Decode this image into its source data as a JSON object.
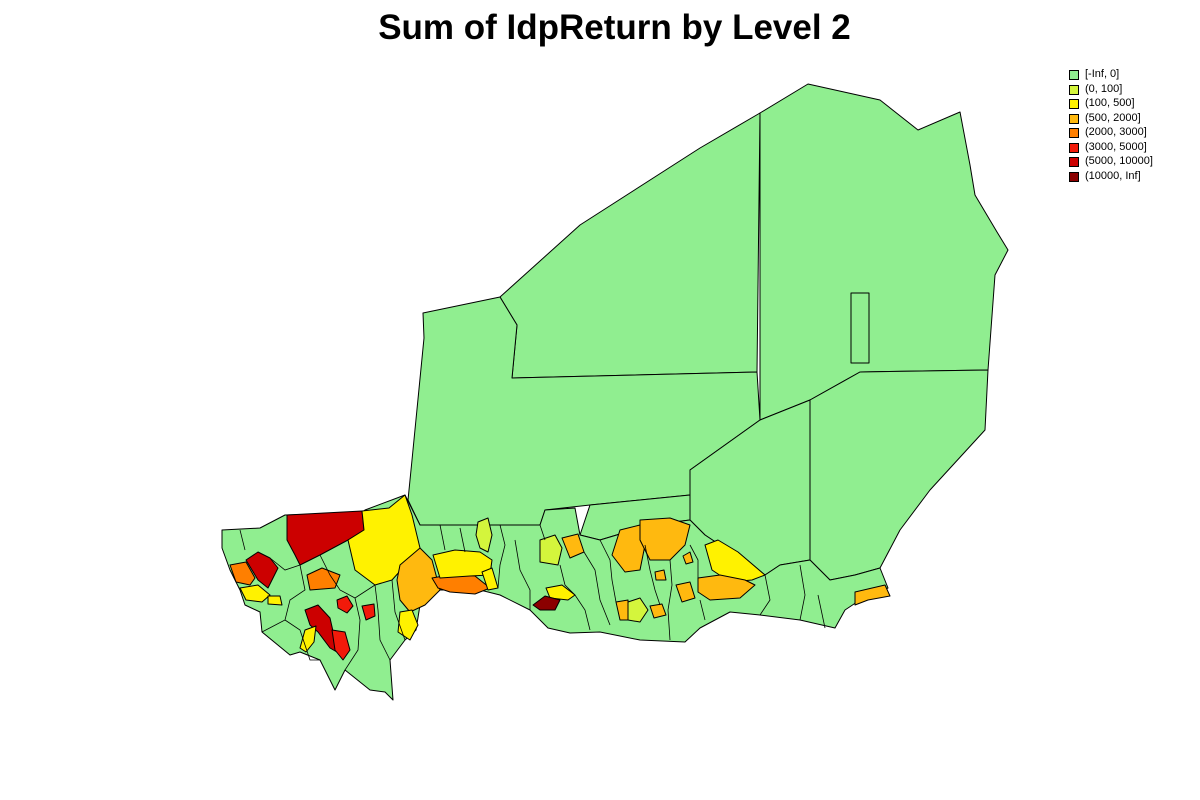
{
  "title": "Sum of IdpReturn by Level 2",
  "legend": {
    "items": [
      {
        "label": "[-Inf, 0]",
        "color": "#90EE90"
      },
      {
        "label": "(0, 100]",
        "color": "#D4F53C"
      },
      {
        "label": "(100, 500]",
        "color": "#FFF200"
      },
      {
        "label": "(500, 2000]",
        "color": "#FFB90F"
      },
      {
        "label": "(2000, 3000]",
        "color": "#FF7F00"
      },
      {
        "label": "(3000, 5000]",
        "color": "#F21A0A"
      },
      {
        "label": "(5000, 10000]",
        "color": "#CC0000"
      },
      {
        "label": "(10000, Inf]",
        "color": "#8B0000"
      }
    ]
  },
  "colors": {
    "outline": "#000000",
    "background": "#FFFFFF"
  }
}
